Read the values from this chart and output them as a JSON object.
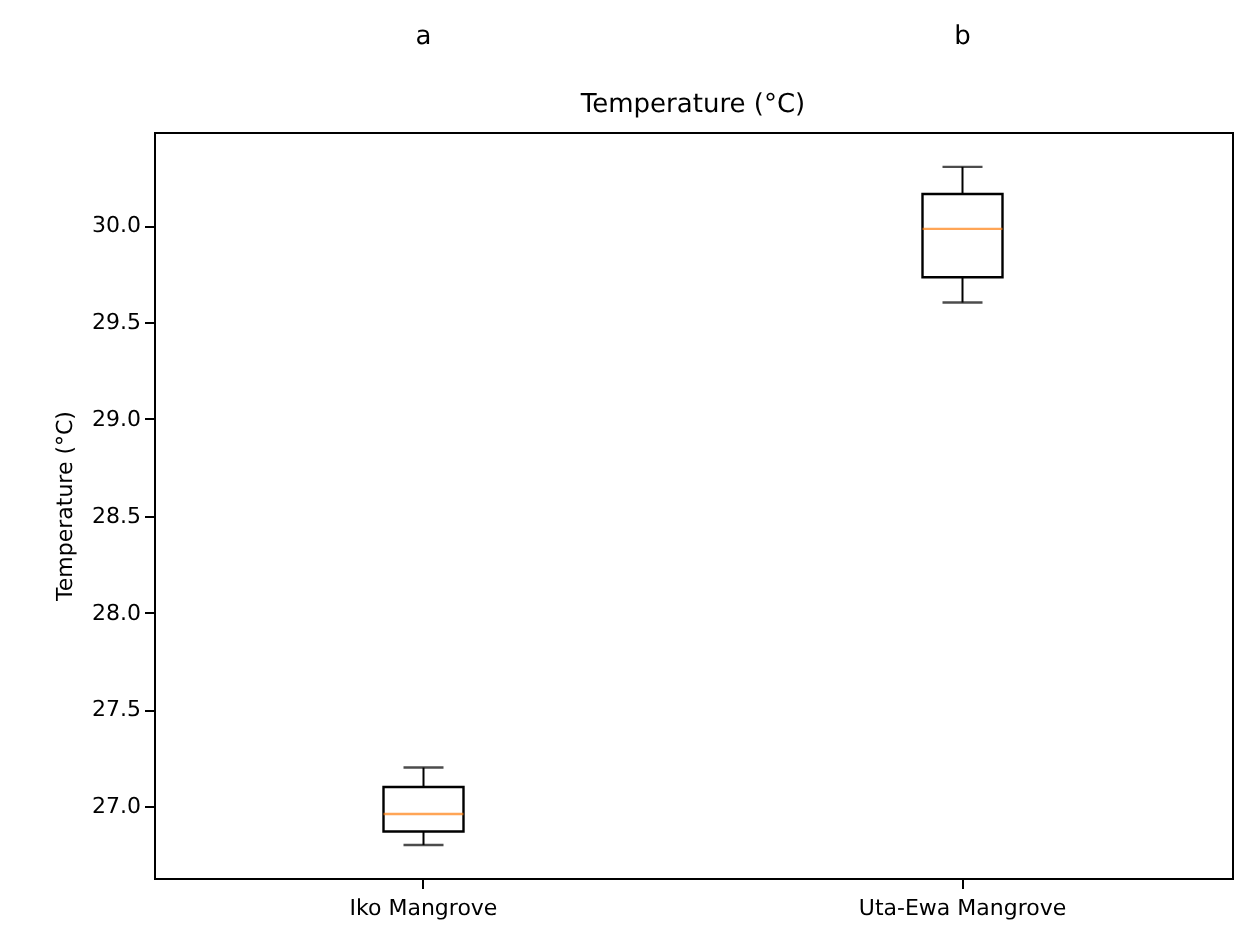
{
  "chart_data": {
    "type": "box",
    "title": "Temperature (°C)",
    "ylabel": "Temperature (°C)",
    "categories": [
      "Iko Mangrove",
      "Uta-Ewa Mangrove"
    ],
    "boxes": [
      {
        "low": 26.8,
        "q1": 26.87,
        "median": 26.96,
        "q3": 27.1,
        "high": 27.2
      },
      {
        "low": 29.6,
        "q1": 29.73,
        "median": 29.98,
        "q3": 30.16,
        "high": 30.3
      }
    ],
    "ylim": [
      26.63,
      30.48
    ],
    "yticks": [
      {
        "value": 27,
        "label": "27.0"
      },
      27.5,
      {
        "value": 28,
        "label": "28.0"
      },
      28.5,
      {
        "value": 29,
        "label": "29.0"
      },
      29.5,
      {
        "value": 30,
        "label": "30.0"
      }
    ],
    "annotations": [
      "a",
      "b"
    ],
    "grid": false
  }
}
